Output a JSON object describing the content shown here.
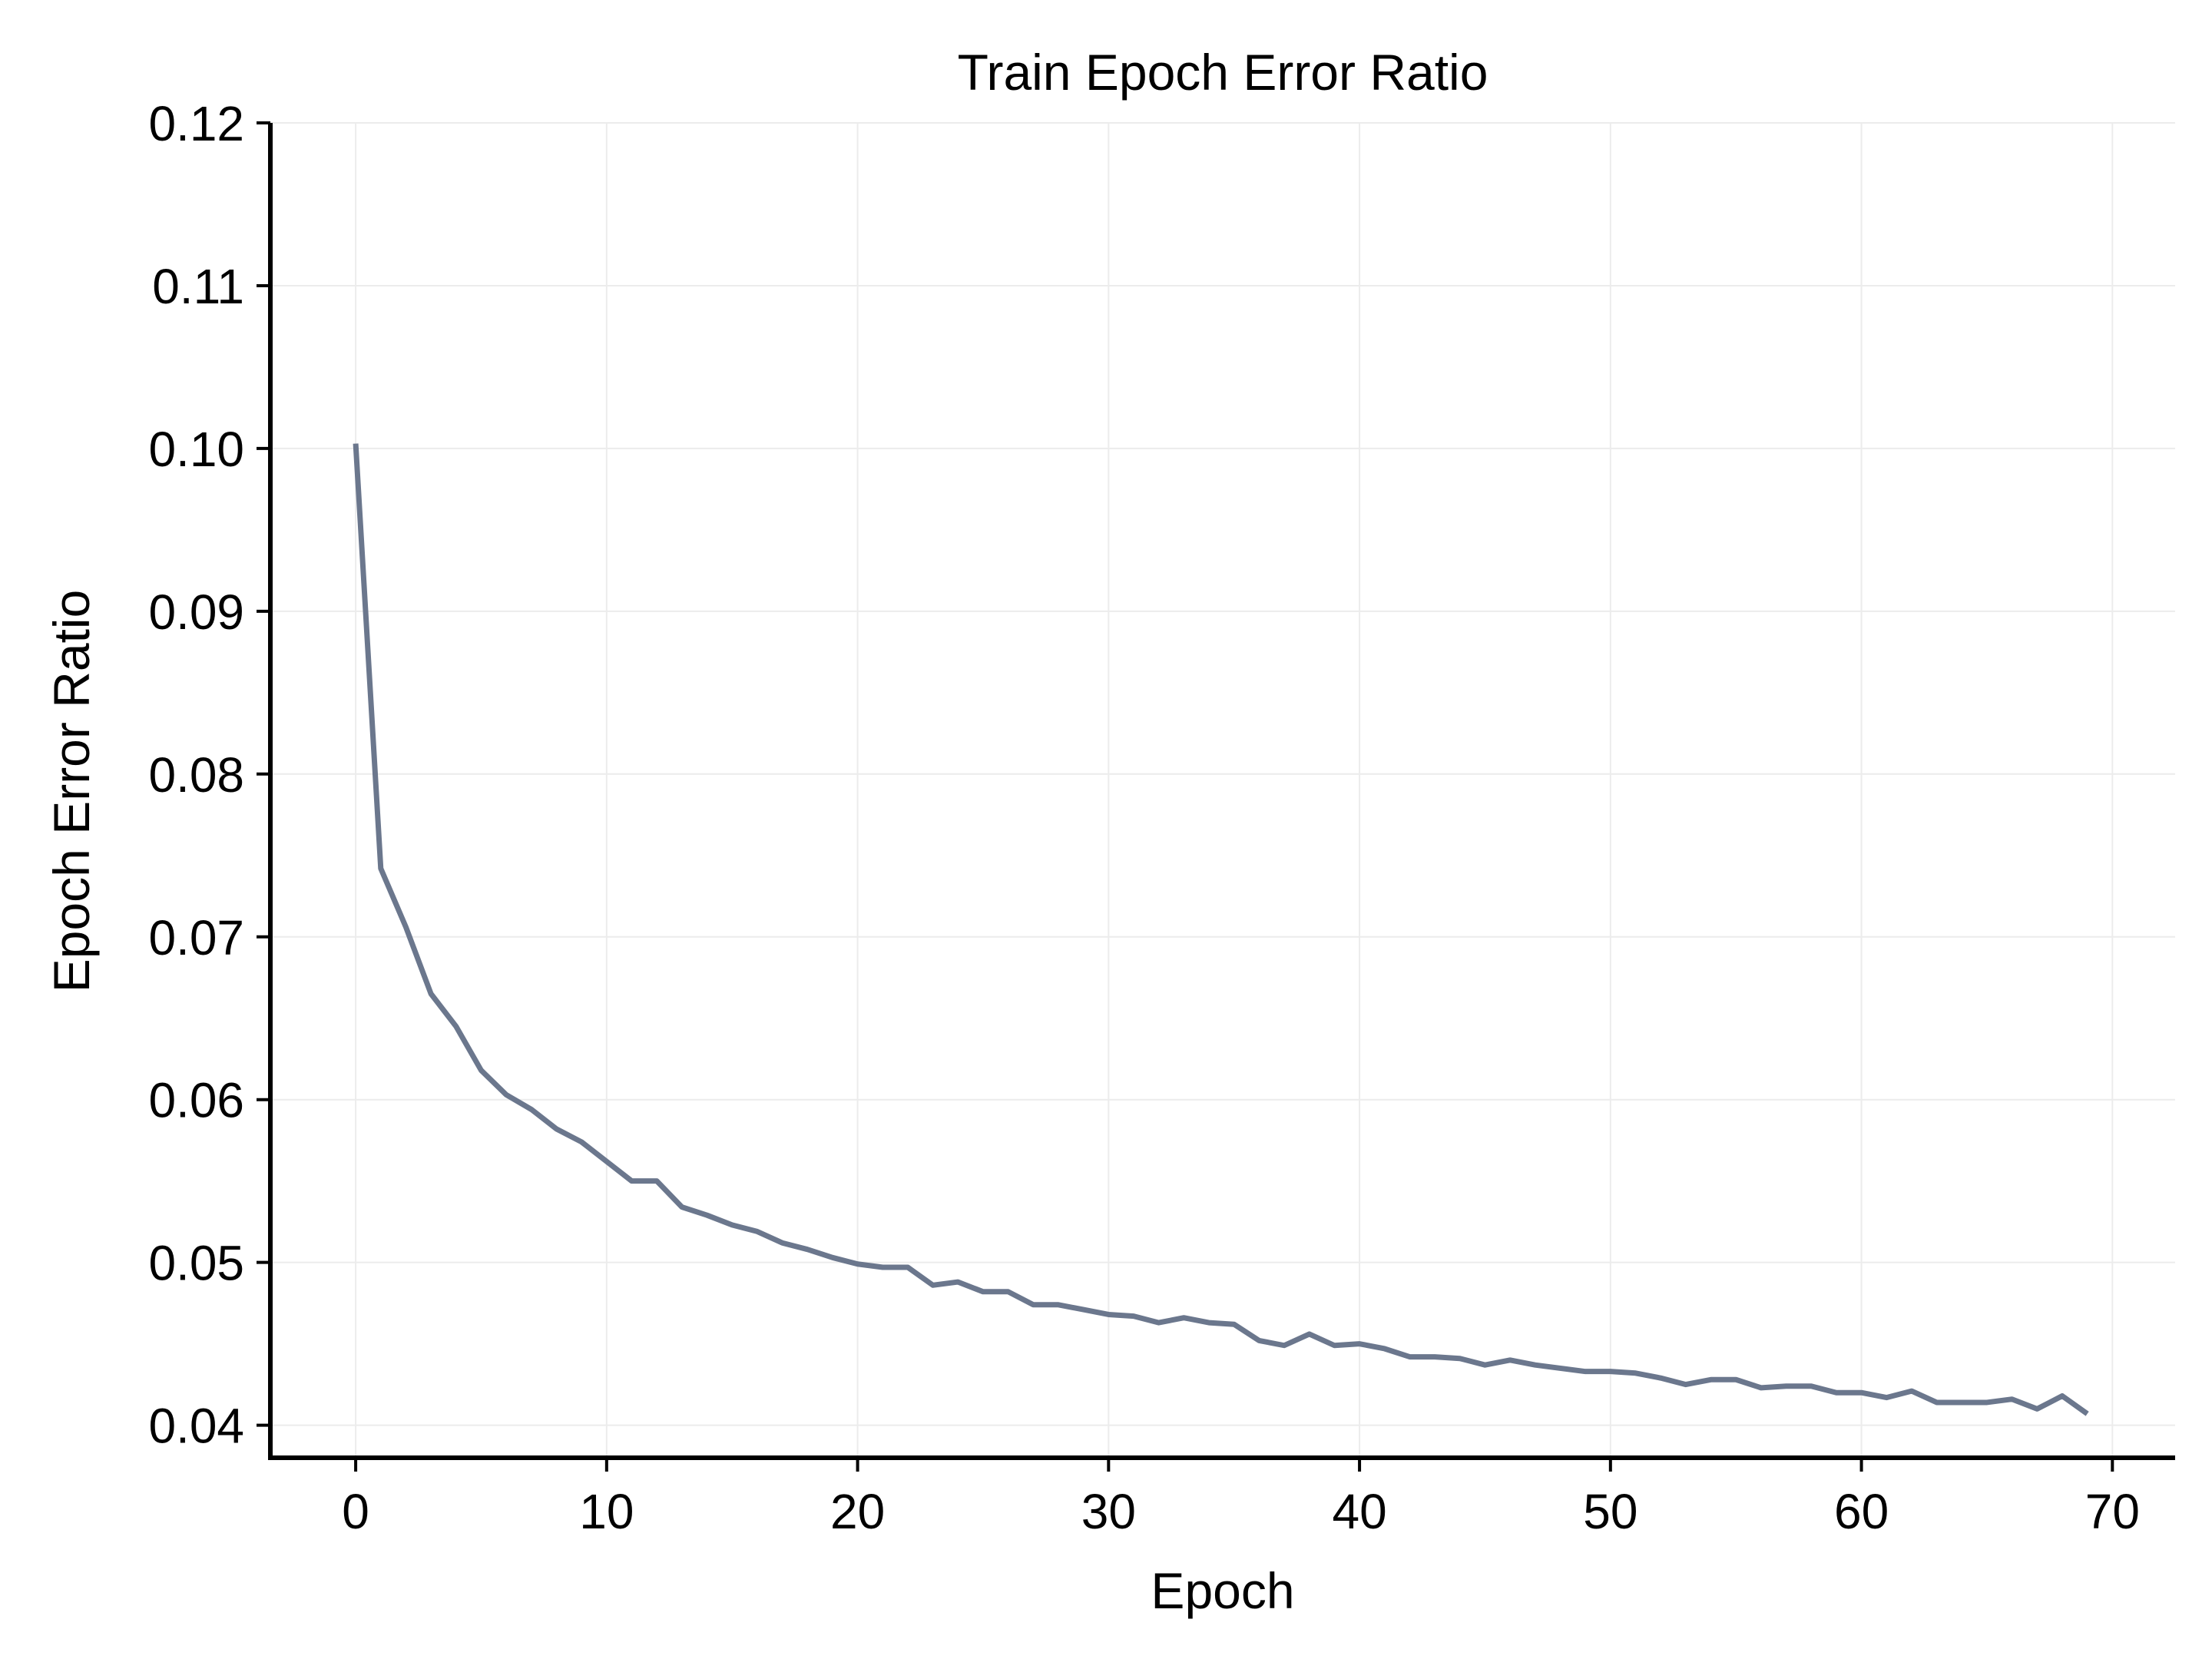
{
  "chart_data": {
    "type": "line",
    "title": "Train Epoch Error Ratio",
    "xlabel": "Epoch",
    "ylabel": "Epoch Error Ratio",
    "xlim": [
      -3.4,
      72.5
    ],
    "ylim": [
      0.038,
      0.12
    ],
    "xticks": [
      0,
      10,
      20,
      30,
      40,
      50,
      60,
      70
    ],
    "yticks": [
      0.04,
      0.05,
      0.06,
      0.07,
      0.08,
      0.09,
      0.1,
      0.11,
      0.12
    ],
    "xtick_labels": [
      "0",
      "10",
      "20",
      "30",
      "40",
      "50",
      "60",
      "70"
    ],
    "ytick_labels": [
      "0.04",
      "0.05",
      "0.06",
      "0.07",
      "0.08",
      "0.09",
      "0.10",
      "0.11",
      "0.12"
    ],
    "grid": true,
    "line_color": "#6b778d",
    "series": [
      {
        "x": [
          0,
          1,
          2,
          3,
          4,
          5,
          6,
          7,
          8,
          9,
          10,
          11,
          12,
          13,
          14,
          15,
          16,
          17,
          18,
          19,
          20,
          21,
          22,
          23,
          24,
          25,
          26,
          27,
          28,
          29,
          30,
          31,
          32,
          33,
          34,
          35,
          36,
          37,
          38,
          39,
          40,
          41,
          42,
          43,
          44,
          45,
          46,
          47,
          48,
          49,
          50,
          51,
          52,
          53,
          54,
          55,
          56,
          57,
          58,
          59,
          60,
          61,
          62,
          63,
          64,
          65,
          66,
          67,
          68,
          69
        ],
        "values": [
          0.1003,
          0.0742,
          0.0706,
          0.0665,
          0.0645,
          0.0618,
          0.0603,
          0.0594,
          0.0582,
          0.0574,
          0.0562,
          0.055,
          0.055,
          0.0534,
          0.0529,
          0.0523,
          0.0519,
          0.0512,
          0.0508,
          0.0503,
          0.0499,
          0.0497,
          0.0497,
          0.0486,
          0.0488,
          0.0482,
          0.0482,
          0.0474,
          0.0474,
          0.0471,
          0.0468,
          0.0467,
          0.0463,
          0.0466,
          0.0463,
          0.0462,
          0.0452,
          0.0449,
          0.0456,
          0.0449,
          0.045,
          0.0447,
          0.0442,
          0.0442,
          0.0441,
          0.0437,
          0.044,
          0.0437,
          0.0435,
          0.0433,
          0.0433,
          0.0432,
          0.0429,
          0.0425,
          0.0428,
          0.0428,
          0.0423,
          0.0424,
          0.0424,
          0.042,
          0.042,
          0.0417,
          0.0421,
          0.0414,
          0.0414,
          0.0414,
          0.0416,
          0.041,
          0.0418,
          0.0407
        ]
      }
    ]
  }
}
